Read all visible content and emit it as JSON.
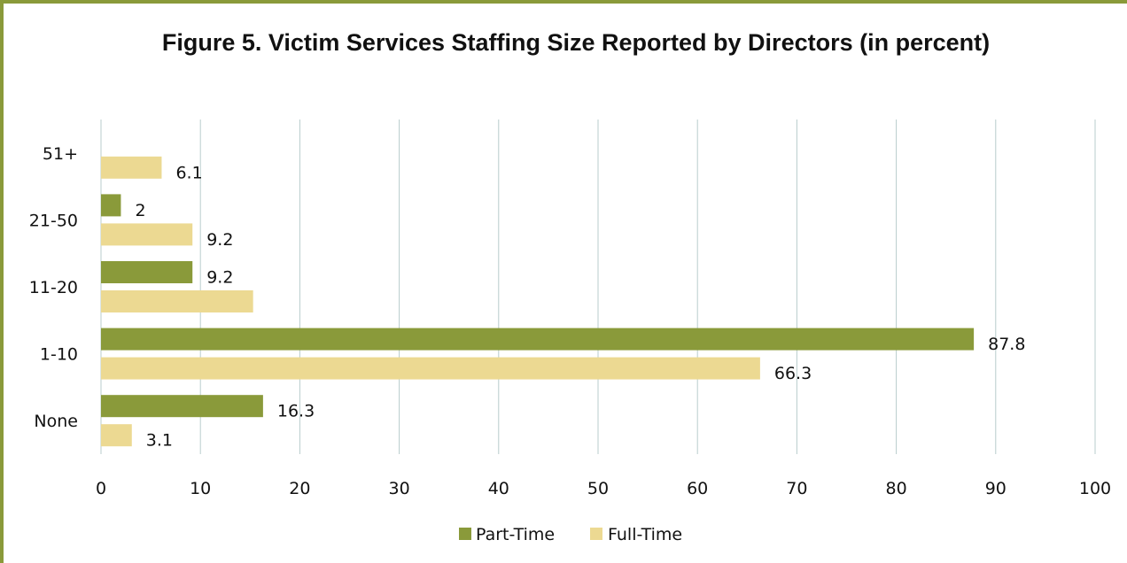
{
  "chart_data": {
    "type": "bar",
    "orientation": "horizontal",
    "title": "Figure 5. Victim Services Staffing Size Reported by Directors (in percent)",
    "categories": [
      "51+",
      "21-50",
      "11-20",
      "1-10",
      "None"
    ],
    "series": [
      {
        "name": "Part-Time",
        "color": "#8a9a3a",
        "values": [
          null,
          2,
          9.2,
          87.8,
          16.3
        ],
        "labels": [
          "",
          "2",
          "9.2",
          "87.8",
          "16.3"
        ]
      },
      {
        "name": "Full-Time",
        "color": "#ecd992",
        "values": [
          6.1,
          9.2,
          15.3,
          66.3,
          3.1
        ],
        "labels": [
          "6.1",
          "9.2",
          "",
          "66.3",
          "3.1"
        ]
      }
    ],
    "xlim": [
      0,
      100
    ],
    "xticks": [
      "0",
      "10",
      "20",
      "30",
      "40",
      "50",
      "60",
      "70",
      "80",
      "90",
      "100"
    ],
    "grid": true,
    "legend_position": "bottom"
  }
}
